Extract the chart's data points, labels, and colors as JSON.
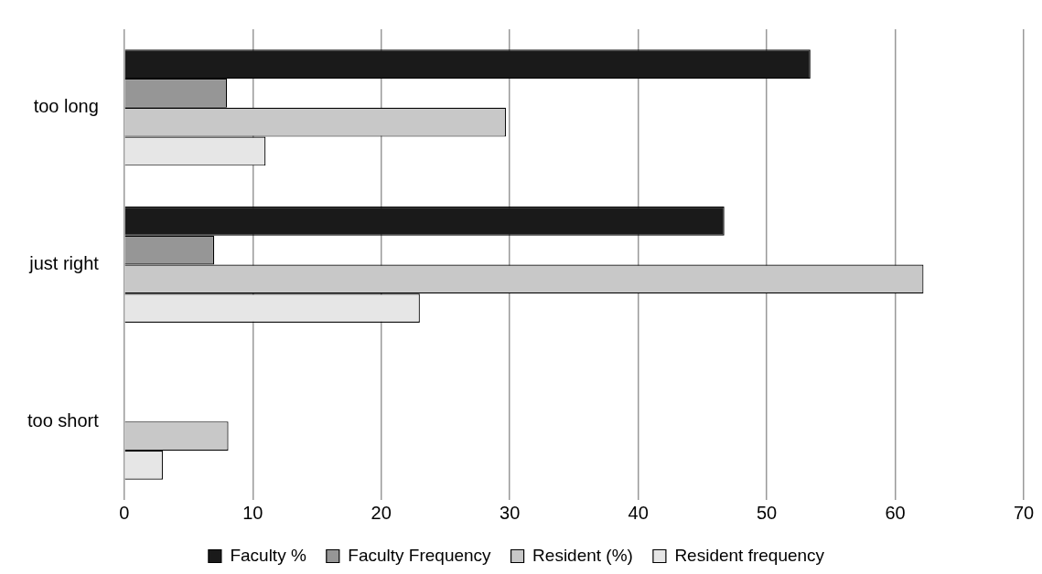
{
  "chart_data": {
    "type": "bar",
    "orientation": "horizontal",
    "categories": [
      "too long",
      "just right",
      "too short"
    ],
    "series": [
      {
        "name": "Faculty %",
        "color": "#1a1a1a",
        "values": [
          53.4,
          46.7,
          null
        ]
      },
      {
        "name": "Faculty Frequency",
        "color": "#969696",
        "values": [
          8.0,
          7.0,
          null
        ]
      },
      {
        "name": "Resident (%)",
        "color": "#c8c8c8",
        "values": [
          29.7,
          62.2,
          8.1
        ]
      },
      {
        "name": "Resident frequency",
        "color": "#e6e6e6",
        "values": [
          11.0,
          23.0,
          3.0
        ]
      }
    ],
    "xlim": [
      0,
      70
    ],
    "xticks": [
      0,
      10,
      20,
      30,
      40,
      50,
      60,
      70
    ],
    "grid": "x",
    "legend": "bottom"
  }
}
